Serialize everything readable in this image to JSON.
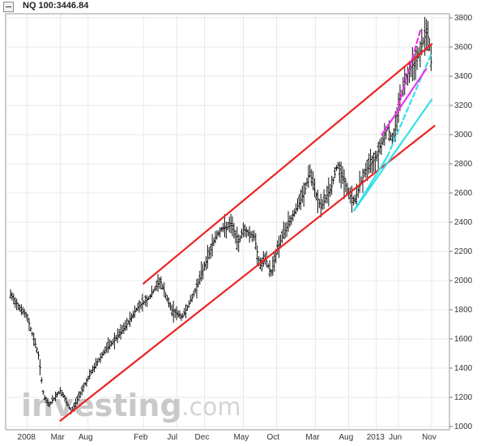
{
  "header": {
    "ticker": "NQ 100:3446.84"
  },
  "watermark": {
    "brand": "investing",
    "suffix": ".com"
  },
  "chart_data": {
    "type": "ohlc",
    "title": "NQ 100:3446.84",
    "xlabel": "",
    "ylabel": "",
    "ylim": [
      1000,
      3800
    ],
    "y_ticks": [
      1000,
      1200,
      1400,
      1600,
      1800,
      2000,
      2200,
      2400,
      2600,
      2800,
      3000,
      3200,
      3400,
      3600,
      3800
    ],
    "x_ticks": [
      "2008",
      "Mar",
      "Aug",
      "Feb",
      "Jul",
      "Dec",
      "May",
      "Oct",
      "Mar",
      "Aug",
      "2013",
      "Jun",
      "Nov"
    ],
    "grid": true,
    "price_points": [
      {
        "t": 0,
        "v": 1900
      },
      {
        "t": 3,
        "v": 1750
      },
      {
        "t": 5,
        "v": 1500
      },
      {
        "t": 6,
        "v": 1200
      },
      {
        "t": 7,
        "v": 1150
      },
      {
        "t": 9,
        "v": 1250
      },
      {
        "t": 11,
        "v": 1100
      },
      {
        "t": 13,
        "v": 1260
      },
      {
        "t": 15,
        "v": 1400
      },
      {
        "t": 17,
        "v": 1520
      },
      {
        "t": 19,
        "v": 1600
      },
      {
        "t": 21,
        "v": 1700
      },
      {
        "t": 23,
        "v": 1820
      },
      {
        "t": 25,
        "v": 1880
      },
      {
        "t": 27,
        "v": 2000
      },
      {
        "t": 29,
        "v": 1800
      },
      {
        "t": 31,
        "v": 1750
      },
      {
        "t": 33,
        "v": 1900
      },
      {
        "t": 35,
        "v": 2100
      },
      {
        "t": 37,
        "v": 2300
      },
      {
        "t": 38,
        "v": 2350
      },
      {
        "t": 40,
        "v": 2380
      },
      {
        "t": 41,
        "v": 2250
      },
      {
        "t": 42,
        "v": 2350
      },
      {
        "t": 44,
        "v": 2300
      },
      {
        "t": 45,
        "v": 2100
      },
      {
        "t": 46,
        "v": 2150
      },
      {
        "t": 47,
        "v": 2050
      },
      {
        "t": 48,
        "v": 2200
      },
      {
        "t": 49,
        "v": 2300
      },
      {
        "t": 51,
        "v": 2450
      },
      {
        "t": 53,
        "v": 2600
      },
      {
        "t": 54,
        "v": 2750
      },
      {
        "t": 55,
        "v": 2600
      },
      {
        "t": 56,
        "v": 2500
      },
      {
        "t": 58,
        "v": 2650
      },
      {
        "t": 59,
        "v": 2800
      },
      {
        "t": 60,
        "v": 2700
      },
      {
        "t": 61,
        "v": 2600
      },
      {
        "t": 62,
        "v": 2540
      },
      {
        "t": 63,
        "v": 2650
      },
      {
        "t": 64,
        "v": 2750
      },
      {
        "t": 65,
        "v": 2800
      },
      {
        "t": 66,
        "v": 2850
      },
      {
        "t": 67,
        "v": 2950
      },
      {
        "t": 68,
        "v": 3050
      },
      {
        "t": 69,
        "v": 2950
      },
      {
        "t": 70,
        "v": 3200
      },
      {
        "t": 71,
        "v": 3350
      },
      {
        "t": 72,
        "v": 3450
      },
      {
        "t": 73,
        "v": 3500
      },
      {
        "t": 74,
        "v": 3580
      },
      {
        "t": 75,
        "v": 3700
      },
      {
        "t": 75.5,
        "v": 3650
      },
      {
        "t": 76,
        "v": 3446.84
      }
    ],
    "trendlines": [
      {
        "color": "#ee2222",
        "style": "solid",
        "from": {
          "t": 24,
          "v": 1980
        },
        "to": {
          "t": 76,
          "v": 3620
        }
      },
      {
        "color": "#ee2222",
        "style": "solid",
        "from": {
          "t": 9,
          "v": 1040
        },
        "to": {
          "t": 76.5,
          "v": 3060
        }
      },
      {
        "color": "#33e0ea",
        "style": "solid",
        "from": {
          "t": 62,
          "v": 2480
        },
        "to": {
          "t": 76,
          "v": 3240
        }
      },
      {
        "color": "#33e0ea",
        "style": "solid",
        "from": {
          "t": 62,
          "v": 2480
        },
        "to": {
          "t": 68,
          "v": 2850
        }
      },
      {
        "color": "#33e0ea",
        "style": "dashed",
        "from": {
          "t": 68,
          "v": 2850
        },
        "to": {
          "t": 76,
          "v": 3560
        }
      },
      {
        "color": "#ee33ee",
        "style": "solid",
        "from": {
          "t": 67,
          "v": 3000
        },
        "to": {
          "t": 75,
          "v": 3450
        }
      },
      {
        "color": "#ee33ee",
        "style": "dashed",
        "from": {
          "t": 70,
          "v": 3200
        },
        "to": {
          "t": 74,
          "v": 3720
        }
      }
    ],
    "colors": {
      "bars": "#111111",
      "grid": "#e8e8e8"
    }
  }
}
